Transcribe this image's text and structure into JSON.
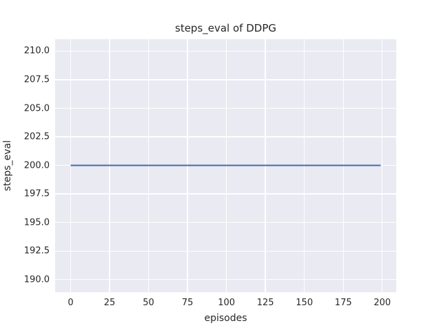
{
  "chart_data": {
    "type": "line",
    "title": "steps_eval of DDPG",
    "xlabel": "episodes",
    "ylabel": "steps_eval",
    "x_ticks": [
      0,
      25,
      50,
      75,
      100,
      125,
      150,
      175,
      200
    ],
    "x_tick_labels": [
      "0",
      "25",
      "50",
      "75",
      "100",
      "125",
      "150",
      "175",
      "200"
    ],
    "y_ticks": [
      190.0,
      192.5,
      195.0,
      197.5,
      200.0,
      202.5,
      205.0,
      207.5,
      210.0
    ],
    "y_tick_labels": [
      "190.0",
      "192.5",
      "195.0",
      "197.5",
      "200.0",
      "202.5",
      "205.0",
      "207.5",
      "210.0"
    ],
    "xlim": [
      -9.95,
      208.95
    ],
    "ylim": [
      188.9,
      211.05
    ],
    "grid": true,
    "legend_position": "none",
    "plot_background_color": "#eaeaf2",
    "grid_color": "#ffffff",
    "text_color": "#262626",
    "series": [
      {
        "name": "DDPG steps_eval",
        "color": "#4c72b0",
        "x": [
          0,
          199
        ],
        "y": [
          200.0,
          200.0
        ]
      }
    ]
  }
}
